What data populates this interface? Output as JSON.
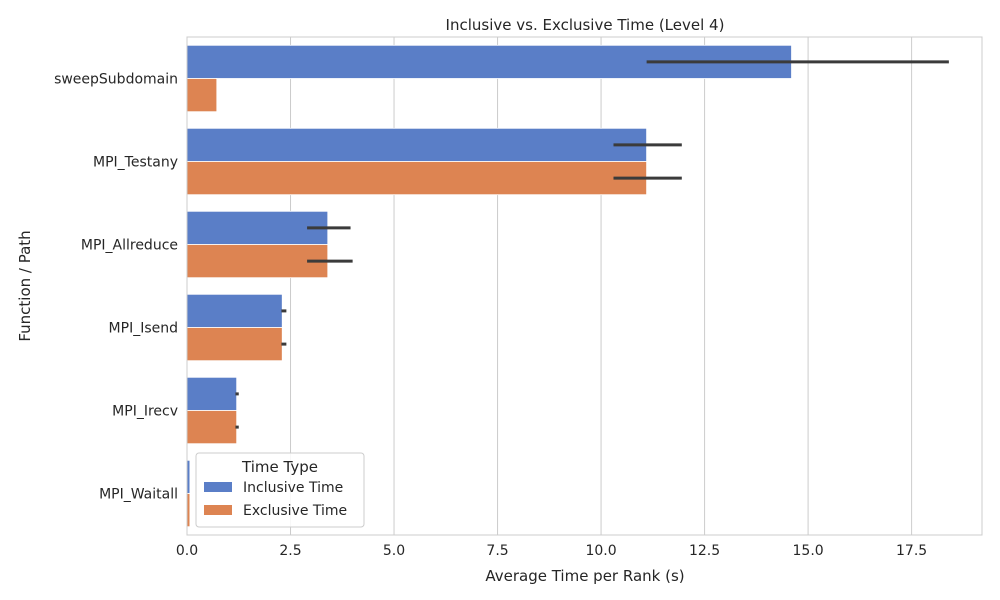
{
  "chart_data": {
    "type": "bar",
    "orientation": "horizontal",
    "title": "Inclusive vs. Exclusive Time (Level 4)",
    "xlabel": "Average Time per Rank (s)",
    "ylabel": "Function / Path",
    "xlim": [
      0,
      19.2
    ],
    "xticks": [
      0,
      2.5,
      5,
      7.5,
      10,
      12.5,
      15,
      17.5
    ],
    "xtick_labels": [
      "0.0",
      "2.5",
      "5.0",
      "7.5",
      "10.0",
      "12.5",
      "15.0",
      "17.5"
    ],
    "grid": true,
    "categories": [
      "sweepSubdomain",
      "MPI_Testany",
      "MPI_Allreduce",
      "MPI_Isend",
      "MPI_Irecv",
      "MPI_Waitall"
    ],
    "legend": {
      "title": "Time Type",
      "placement": "lower-left"
    },
    "series": [
      {
        "name": "Inclusive Time",
        "color": "#5a7ec7",
        "values": [
          14.6,
          11.1,
          3.4,
          2.3,
          1.2,
          0.07
        ],
        "error_low": [
          11.1,
          10.3,
          2.9,
          2.28,
          1.17,
          0.07
        ],
        "error_high": [
          18.4,
          11.95,
          3.95,
          2.4,
          1.25,
          0.07
        ]
      },
      {
        "name": "Exclusive Time",
        "color": "#dd8452",
        "values": [
          0.72,
          11.1,
          3.4,
          2.3,
          1.2,
          0.07
        ],
        "error_low": [
          0.72,
          10.3,
          2.9,
          2.28,
          1.17,
          0.07
        ],
        "error_high": [
          0.72,
          11.95,
          4.0,
          2.4,
          1.25,
          0.07
        ]
      }
    ]
  }
}
